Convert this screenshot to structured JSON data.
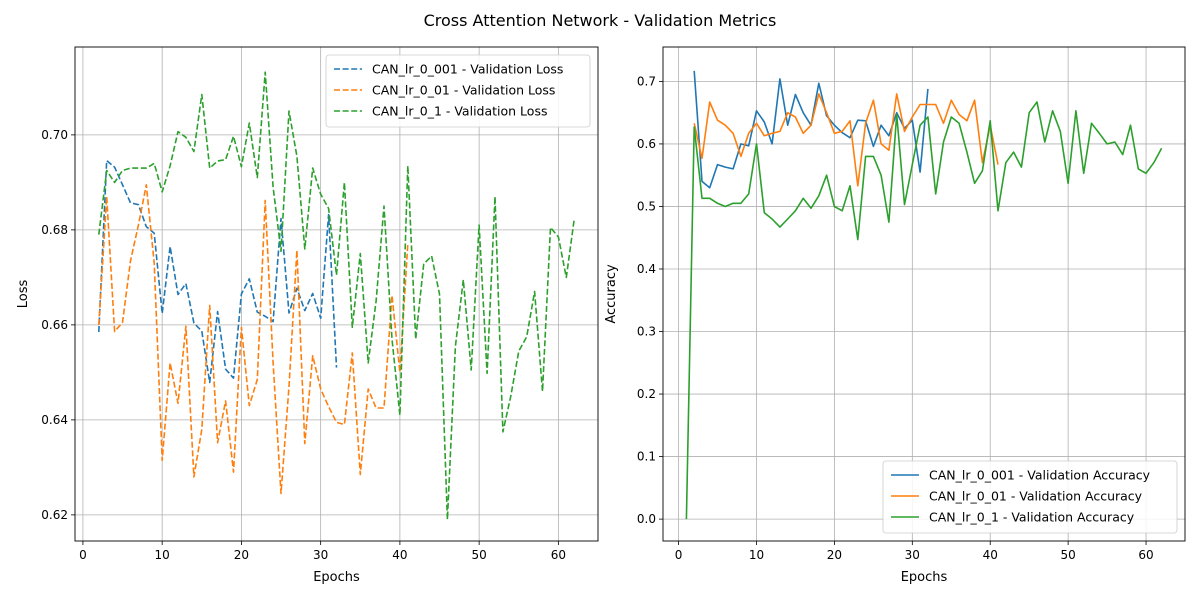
{
  "figure": {
    "title": "Cross Attention Network - Validation Metrics"
  },
  "colors": {
    "blue": "#1f77b4",
    "orange": "#ff7f0e",
    "green": "#2ca02c",
    "grid": "#b0b0b0"
  },
  "chart_data": [
    {
      "type": "line",
      "title": "",
      "xlabel": "Epochs",
      "ylabel": "Loss",
      "xlim": [
        -1,
        65
      ],
      "ylim": [
        0.6145,
        0.7185
      ],
      "xticks": [
        0,
        10,
        20,
        30,
        40,
        50,
        60
      ],
      "yticks": [
        0.62,
        0.64,
        0.66,
        0.68,
        0.7
      ],
      "ytick_labels": [
        "0.62",
        "0.64",
        "0.66",
        "0.68",
        "0.70"
      ],
      "grid": true,
      "legend_position": "top-right",
      "series": [
        {
          "name": "CAN_lr_0_001 - Validation Loss",
          "color": "#1f77b4",
          "dashed": true,
          "x": [
            2,
            3,
            4,
            5,
            6,
            7,
            8,
            9,
            10,
            11,
            12,
            13,
            14,
            15,
            16,
            17,
            18,
            19,
            20,
            21,
            22,
            23,
            24,
            25,
            26,
            27,
            28,
            29,
            30,
            31,
            32
          ],
          "values": [
            0.6585,
            0.6946,
            0.6932,
            0.6895,
            0.6857,
            0.6853,
            0.6807,
            0.6793,
            0.6624,
            0.6765,
            0.6664,
            0.6687,
            0.6604,
            0.6587,
            0.6479,
            0.6628,
            0.6507,
            0.6488,
            0.6665,
            0.6697,
            0.6627,
            0.6618,
            0.6607,
            0.6824,
            0.6625,
            0.6677,
            0.663,
            0.6666,
            0.6614,
            0.6832,
            0.651
          ]
        },
        {
          "name": "CAN_lr_0_01 - Validation Loss",
          "color": "#ff7f0e",
          "dashed": true,
          "x": [
            2,
            3,
            4,
            5,
            6,
            7,
            8,
            9,
            10,
            11,
            12,
            13,
            14,
            15,
            16,
            17,
            18,
            19,
            20,
            21,
            22,
            23,
            24,
            25,
            26,
            27,
            28,
            29,
            30,
            31,
            32,
            33,
            34,
            35,
            36,
            37,
            38,
            39,
            40,
            41
          ],
          "values": [
            0.66,
            0.687,
            0.6586,
            0.6605,
            0.6735,
            0.681,
            0.6895,
            0.673,
            0.6315,
            0.652,
            0.6435,
            0.6597,
            0.628,
            0.638,
            0.6641,
            0.6352,
            0.644,
            0.629,
            0.6595,
            0.643,
            0.6485,
            0.6862,
            0.652,
            0.6245,
            0.647,
            0.6757,
            0.635,
            0.6535,
            0.6465,
            0.6428,
            0.6395,
            0.639,
            0.6541,
            0.6285,
            0.6465,
            0.6425,
            0.6425,
            0.6662,
            0.65,
            0.677
          ]
        },
        {
          "name": "CAN_lr_0_1 - Validation Loss",
          "color": "#2ca02c",
          "dashed": true,
          "x": [
            2,
            3,
            4,
            5,
            6,
            7,
            8,
            9,
            10,
            11,
            12,
            13,
            14,
            15,
            16,
            17,
            18,
            19,
            20,
            21,
            22,
            23,
            24,
            25,
            26,
            27,
            28,
            29,
            30,
            31,
            32,
            33,
            34,
            35,
            36,
            37,
            38,
            39,
            40,
            41,
            42,
            43,
            44,
            45,
            46,
            47,
            48,
            49,
            50,
            51,
            52,
            53,
            54,
            55,
            56,
            57,
            58,
            59,
            60,
            61,
            62
          ],
          "values": [
            0.679,
            0.6925,
            0.69,
            0.6925,
            0.693,
            0.693,
            0.693,
            0.694,
            0.688,
            0.6935,
            0.7007,
            0.6995,
            0.6965,
            0.7085,
            0.693,
            0.6945,
            0.6948,
            0.6997,
            0.6933,
            0.7025,
            0.691,
            0.7132,
            0.689,
            0.6755,
            0.705,
            0.6955,
            0.676,
            0.693,
            0.6875,
            0.6845,
            0.6705,
            0.69,
            0.6595,
            0.675,
            0.652,
            0.665,
            0.685,
            0.657,
            0.641,
            0.6935,
            0.657,
            0.6728,
            0.6745,
            0.6665,
            0.619,
            0.6555,
            0.6695,
            0.6505,
            0.681,
            0.6498,
            0.687,
            0.6375,
            0.645,
            0.6545,
            0.6575,
            0.667,
            0.646,
            0.6805,
            0.6785,
            0.67,
            0.6822
          ]
        }
      ]
    },
    {
      "type": "line",
      "title": "",
      "xlabel": "Epochs",
      "ylabel": "Accuracy",
      "xlim": [
        -2,
        65
      ],
      "ylim": [
        -0.035,
        0.755
      ],
      "xticks": [
        0,
        10,
        20,
        30,
        40,
        50,
        60
      ],
      "yticks": [
        0.0,
        0.1,
        0.2,
        0.3,
        0.4,
        0.5,
        0.6,
        0.7
      ],
      "ytick_labels": [
        "0.0",
        "0.1",
        "0.2",
        "0.3",
        "0.4",
        "0.5",
        "0.6",
        "0.7"
      ],
      "grid": true,
      "legend_position": "bottom-right",
      "series": [
        {
          "name": "CAN_lr_0_001 - Validation Accuracy",
          "color": "#1f77b4",
          "dashed": false,
          "x": [
            2,
            3,
            4,
            5,
            6,
            7,
            8,
            9,
            10,
            11,
            12,
            13,
            14,
            15,
            16,
            17,
            18,
            19,
            20,
            21,
            22,
            23,
            24,
            25,
            26,
            27,
            28,
            29,
            30,
            31,
            32
          ],
          "values": [
            0.717,
            0.54,
            0.53,
            0.567,
            0.563,
            0.56,
            0.6,
            0.597,
            0.653,
            0.635,
            0.6,
            0.704,
            0.63,
            0.679,
            0.65,
            0.63,
            0.697,
            0.645,
            0.63,
            0.618,
            0.61,
            0.638,
            0.637,
            0.596,
            0.63,
            0.613,
            0.65,
            0.625,
            0.638,
            0.555,
            0.688
          ]
        },
        {
          "name": "CAN_lr_0_01 - Validation Accuracy",
          "color": "#ff7f0e",
          "dashed": false,
          "x": [
            2,
            3,
            4,
            5,
            6,
            7,
            8,
            9,
            10,
            11,
            12,
            13,
            14,
            15,
            16,
            17,
            18,
            19,
            20,
            21,
            22,
            23,
            24,
            25,
            26,
            27,
            28,
            29,
            30,
            31,
            32,
            33,
            34,
            35,
            36,
            37,
            38,
            39,
            40,
            41
          ],
          "values": [
            0.633,
            0.577,
            0.667,
            0.638,
            0.63,
            0.617,
            0.58,
            0.617,
            0.633,
            0.613,
            0.617,
            0.62,
            0.65,
            0.643,
            0.617,
            0.63,
            0.68,
            0.65,
            0.617,
            0.62,
            0.637,
            0.533,
            0.633,
            0.67,
            0.6,
            0.59,
            0.68,
            0.62,
            0.643,
            0.663,
            0.663,
            0.663,
            0.633,
            0.67,
            0.647,
            0.637,
            0.67,
            0.57,
            0.63,
            0.567
          ]
        },
        {
          "name": "CAN_lr_0_1 - Validation Accuracy",
          "color": "#2ca02c",
          "dashed": false,
          "x": [
            1,
            2,
            3,
            4,
            5,
            6,
            7,
            8,
            9,
            10,
            11,
            12,
            13,
            14,
            15,
            16,
            17,
            18,
            19,
            20,
            21,
            22,
            23,
            24,
            25,
            26,
            27,
            28,
            29,
            30,
            31,
            32,
            33,
            34,
            35,
            36,
            37,
            38,
            39,
            40,
            41,
            42,
            43,
            44,
            45,
            46,
            47,
            48,
            49,
            50,
            51,
            52,
            53,
            54,
            55,
            56,
            57,
            58,
            59,
            60,
            61,
            62
          ],
          "values": [
            0.0,
            0.627,
            0.513,
            0.513,
            0.505,
            0.5,
            0.505,
            0.505,
            0.52,
            0.6,
            0.49,
            0.48,
            0.467,
            0.48,
            0.493,
            0.513,
            0.497,
            0.517,
            0.55,
            0.5,
            0.493,
            0.533,
            0.447,
            0.58,
            0.58,
            0.55,
            0.475,
            0.647,
            0.503,
            0.567,
            0.63,
            0.643,
            0.52,
            0.603,
            0.643,
            0.633,
            0.587,
            0.537,
            0.557,
            0.637,
            0.493,
            0.57,
            0.587,
            0.563,
            0.65,
            0.667,
            0.603,
            0.653,
            0.62,
            0.537,
            0.653,
            0.553,
            0.633,
            0.617,
            0.6,
            0.603,
            0.583,
            0.63,
            0.56,
            0.553,
            0.57,
            0.593
          ]
        }
      ]
    }
  ]
}
